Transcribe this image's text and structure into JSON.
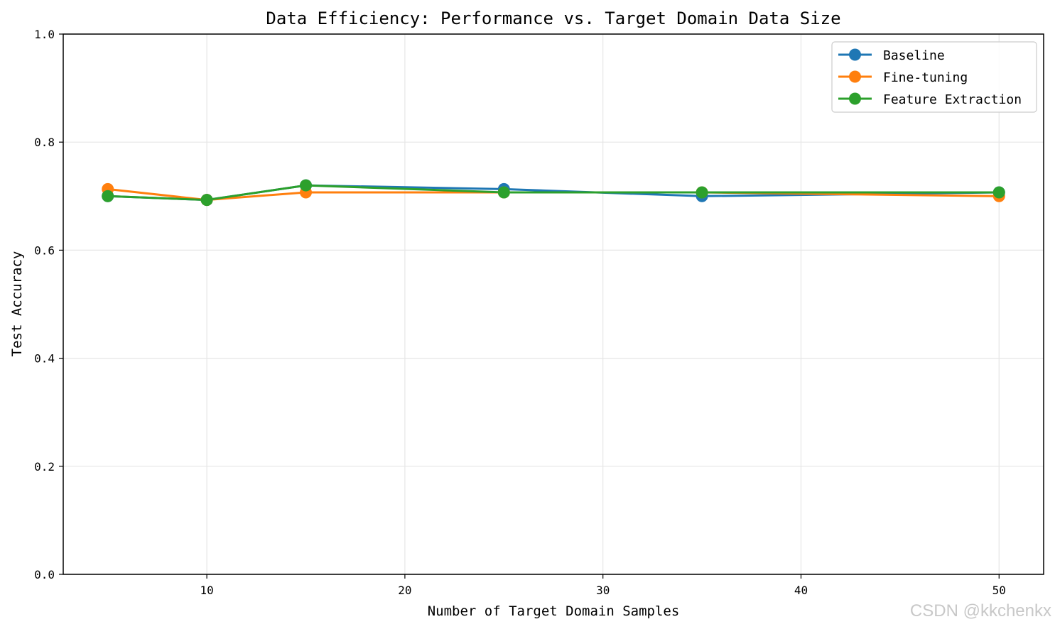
{
  "chart_data": {
    "type": "line",
    "title": "Data Efficiency: Performance vs. Target Domain Data Size",
    "xlabel": "Number of Target Domain Samples",
    "ylabel": "Test Accuracy",
    "xlim": [
      2.75,
      52.25
    ],
    "ylim": [
      0.0,
      1.0
    ],
    "x_ticks": [
      10,
      20,
      30,
      40,
      50
    ],
    "x_tick_labels": [
      "10",
      "20",
      "30",
      "40",
      "50"
    ],
    "y_ticks": [
      0.0,
      0.2,
      0.4,
      0.6,
      0.8,
      1.0
    ],
    "y_tick_labels": [
      "0.0",
      "0.2",
      "0.4",
      "0.6",
      "0.8",
      "1.0"
    ],
    "grid": true,
    "legend_position": "top-right",
    "x": [
      5,
      10,
      15,
      25,
      35,
      50
    ],
    "series": [
      {
        "name": "Baseline",
        "color": "#1f77b4",
        "marker": "circle",
        "values": [
          0.7,
          0.693,
          0.72,
          0.713,
          0.7,
          0.707
        ]
      },
      {
        "name": "Fine-tuning",
        "color": "#ff7f0e",
        "marker": "circle",
        "values": [
          0.713,
          0.693,
          0.707,
          0.707,
          0.707,
          0.7
        ]
      },
      {
        "name": "Feature Extraction",
        "color": "#2ca02c",
        "marker": "circle",
        "values": [
          0.7,
          0.693,
          0.72,
          0.707,
          0.707,
          0.707
        ]
      }
    ]
  },
  "watermark": "CSDN @kkchenkx"
}
